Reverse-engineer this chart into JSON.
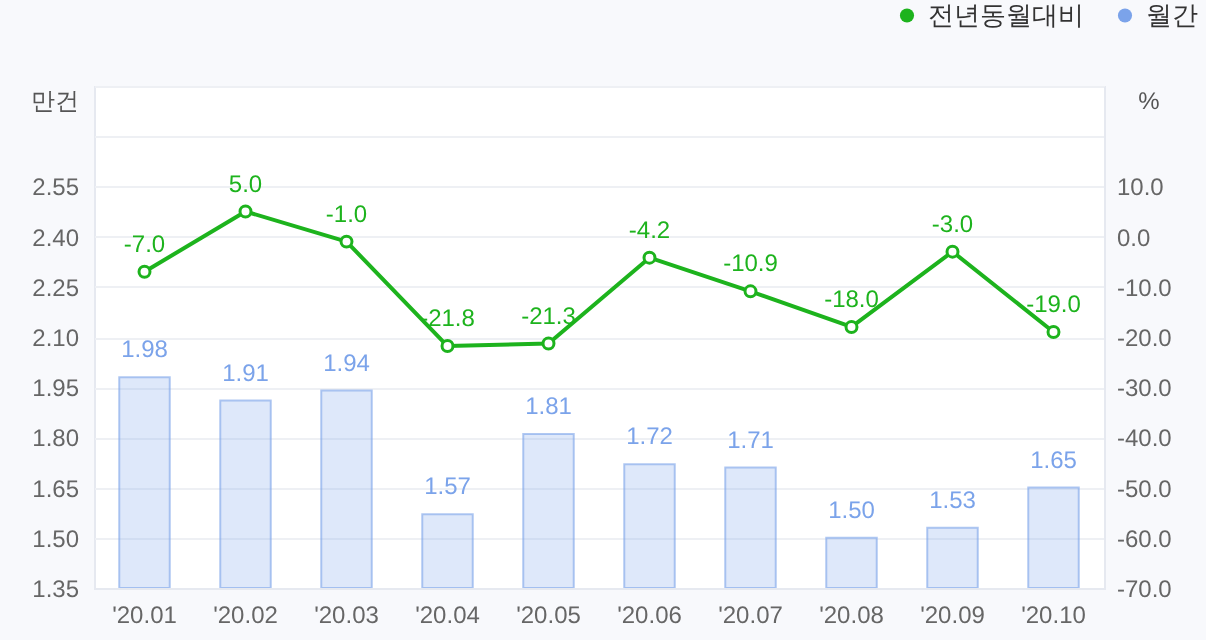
{
  "chart_data": {
    "type": "bar",
    "ylabel": "만건",
    "y2label": "%",
    "categories": [
      "'20.01",
      "'20.02",
      "'20.03",
      "'20.04",
      "'20.05",
      "'20.06",
      "'20.07",
      "'20.08",
      "'20.09",
      "'20.10"
    ],
    "series": [
      {
        "name": "전년동월대비",
        "type": "line",
        "axis": "y2",
        "color": "#1db31d",
        "values": [
          -7.0,
          5.0,
          -1.0,
          -21.8,
          -21.3,
          -4.2,
          -10.9,
          -18.0,
          -3.0,
          -19.0
        ],
        "value_labels": [
          "-7.0",
          "5.0",
          "-1.0",
          "-21.8",
          "-21.3",
          "-4.2",
          "-10.9",
          "-18.0",
          "-3.0",
          "-19.0"
        ]
      },
      {
        "name": "월간",
        "type": "bar",
        "color": "#7ba3ea",
        "values": [
          1.98,
          1.91,
          1.94,
          1.57,
          1.81,
          1.72,
          1.71,
          1.5,
          1.53,
          1.65
        ],
        "value_labels": [
          "1.98",
          "1.91",
          "1.94",
          "1.57",
          "1.81",
          "1.72",
          "1.71",
          "1.50",
          "1.53",
          "1.65"
        ]
      }
    ],
    "ylim": [
      1.35,
      2.85
    ],
    "yticks": [
      {
        "value": 1.35,
        "label": "1.35"
      },
      {
        "value": 1.5,
        "label": "1.50"
      },
      {
        "value": 1.65,
        "label": "1.65"
      },
      {
        "value": 1.8,
        "label": "1.80"
      },
      {
        "value": 1.95,
        "label": "1.95"
      },
      {
        "value": 2.1,
        "label": "2.10"
      },
      {
        "value": 2.25,
        "label": "2.25"
      },
      {
        "value": 2.4,
        "label": "2.40"
      },
      {
        "value": 2.55,
        "label": "2.55"
      },
      {
        "value": 2.7,
        "label": null
      },
      {
        "value": 2.85,
        "label": null
      }
    ],
    "y2lim": [
      -70,
      30
    ],
    "y2ticks": [
      {
        "value": -70,
        "label": "-70.0"
      },
      {
        "value": -60,
        "label": "-60.0"
      },
      {
        "value": -50,
        "label": "-50.0"
      },
      {
        "value": -40,
        "label": "-40.0"
      },
      {
        "value": -30,
        "label": "-30.0"
      },
      {
        "value": -20,
        "label": "-20.0"
      },
      {
        "value": -10,
        "label": "-10.0"
      },
      {
        "value": 0,
        "label": "0.0"
      },
      {
        "value": 10,
        "label": "10.0"
      },
      {
        "value": 20,
        "label": null
      },
      {
        "value": 30,
        "label": null
      }
    ],
    "grid": "y",
    "legend": "top right",
    "marker": "circle"
  }
}
